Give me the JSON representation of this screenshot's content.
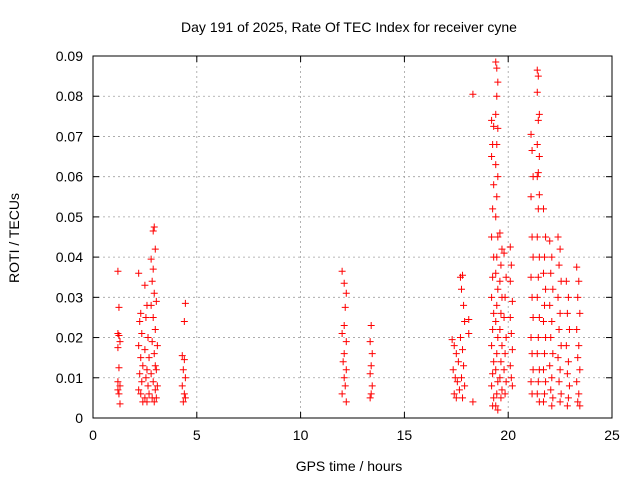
{
  "chart_data": {
    "type": "scatter",
    "title": "Day 191 of 2025, Rate Of TEC Index for receiver cyne",
    "xlabel": "GPS time / hours",
    "ylabel": "ROTI / TECUs",
    "xlim": [
      0,
      25
    ],
    "ylim": [
      0,
      0.09
    ],
    "xticks": [
      0,
      5,
      10,
      15,
      20,
      25
    ],
    "xtick_labels": [
      "0",
      "5",
      "10",
      "15",
      "20",
      "25"
    ],
    "yticks": [
      0,
      0.01,
      0.02,
      0.03,
      0.04,
      0.05,
      0.06,
      0.07,
      0.08,
      0.09
    ],
    "ytick_labels": [
      "0",
      "0.01",
      "0.02",
      "0.03",
      "0.04",
      "0.05",
      "0.06",
      "0.07",
      "0.08",
      "0.09"
    ],
    "grid": true,
    "marker": "+",
    "color": "#ff0000",
    "series": [
      {
        "points": [
          [
            1.2,
            0.0365
          ],
          [
            1.25,
            0.0275
          ],
          [
            1.2,
            0.021
          ],
          [
            1.25,
            0.0205
          ],
          [
            1.3,
            0.019
          ],
          [
            1.2,
            0.0175
          ],
          [
            1.25,
            0.0125
          ],
          [
            1.2,
            0.009
          ],
          [
            1.3,
            0.008
          ],
          [
            1.2,
            0.007
          ],
          [
            1.25,
            0.006
          ],
          [
            1.3,
            0.0035
          ],
          [
            2.2,
            0.036
          ],
          [
            2.3,
            0.026
          ],
          [
            2.25,
            0.024
          ],
          [
            2.35,
            0.021
          ],
          [
            2.2,
            0.018
          ],
          [
            2.3,
            0.015
          ],
          [
            2.4,
            0.013
          ],
          [
            2.25,
            0.011
          ],
          [
            2.35,
            0.009
          ],
          [
            2.2,
            0.007
          ],
          [
            2.3,
            0.006
          ],
          [
            2.4,
            0.004
          ],
          [
            2.5,
            0.033
          ],
          [
            2.6,
            0.028
          ],
          [
            2.55,
            0.025
          ],
          [
            2.65,
            0.02
          ],
          [
            2.5,
            0.017
          ],
          [
            2.7,
            0.015
          ],
          [
            2.6,
            0.012
          ],
          [
            2.55,
            0.01
          ],
          [
            2.65,
            0.008
          ],
          [
            2.7,
            0.006
          ],
          [
            2.6,
            0.004
          ],
          [
            2.5,
            0.005
          ],
          [
            2.8,
            0.0395
          ],
          [
            2.9,
            0.037
          ],
          [
            2.85,
            0.034
          ],
          [
            2.95,
            0.031
          ],
          [
            2.8,
            0.028
          ],
          [
            2.9,
            0.025
          ],
          [
            3.0,
            0.022
          ],
          [
            2.85,
            0.019
          ],
          [
            2.95,
            0.016
          ],
          [
            3.0,
            0.013
          ],
          [
            2.8,
            0.011
          ],
          [
            2.9,
            0.009
          ],
          [
            3.0,
            0.007
          ],
          [
            2.85,
            0.005
          ],
          [
            2.95,
            0.004
          ],
          [
            2.95,
            0.0475
          ],
          [
            2.9,
            0.0465
          ],
          [
            3.0,
            0.042
          ],
          [
            3.05,
            0.029
          ],
          [
            3.1,
            0.018
          ],
          [
            3.05,
            0.012
          ],
          [
            3.1,
            0.008
          ],
          [
            3.05,
            0.005
          ],
          [
            4.3,
            0.0155
          ],
          [
            4.4,
            0.0145
          ],
          [
            4.35,
            0.012
          ],
          [
            4.45,
            0.01
          ],
          [
            4.3,
            0.008
          ],
          [
            4.4,
            0.006
          ],
          [
            4.35,
            0.004
          ],
          [
            4.45,
            0.005
          ],
          [
            4.4,
            0.024
          ],
          [
            4.45,
            0.0285
          ],
          [
            12.0,
            0.0365
          ],
          [
            12.1,
            0.0335
          ],
          [
            12.2,
            0.031
          ],
          [
            12.15,
            0.0275
          ],
          [
            12.1,
            0.023
          ],
          [
            12.0,
            0.021
          ],
          [
            12.2,
            0.019
          ],
          [
            12.1,
            0.016
          ],
          [
            12.05,
            0.014
          ],
          [
            12.2,
            0.012
          ],
          [
            12.1,
            0.01
          ],
          [
            12.15,
            0.008
          ],
          [
            12.0,
            0.006
          ],
          [
            12.2,
            0.004
          ],
          [
            13.4,
            0.023
          ],
          [
            13.35,
            0.019
          ],
          [
            13.45,
            0.016
          ],
          [
            13.4,
            0.013
          ],
          [
            13.35,
            0.011
          ],
          [
            13.45,
            0.008
          ],
          [
            13.4,
            0.006
          ],
          [
            13.35,
            0.005
          ],
          [
            17.3,
            0.0195
          ],
          [
            17.4,
            0.018
          ],
          [
            17.5,
            0.016
          ],
          [
            17.6,
            0.014
          ],
          [
            17.35,
            0.012
          ],
          [
            17.45,
            0.01
          ],
          [
            17.55,
            0.009
          ],
          [
            17.65,
            0.007
          ],
          [
            17.4,
            0.006
          ],
          [
            17.5,
            0.005
          ],
          [
            17.7,
            0.035
          ],
          [
            17.8,
            0.0355
          ],
          [
            17.75,
            0.032
          ],
          [
            17.85,
            0.028
          ],
          [
            17.9,
            0.024
          ],
          [
            17.7,
            0.02
          ],
          [
            17.8,
            0.017
          ],
          [
            17.85,
            0.013
          ],
          [
            17.75,
            0.01
          ],
          [
            17.9,
            0.008
          ],
          [
            17.8,
            0.005
          ],
          [
            18.1,
            0.0245
          ],
          [
            18.1,
            0.021
          ],
          [
            18.3,
            0.0805
          ],
          [
            18.3,
            0.004
          ],
          [
            19.2,
            0.074
          ],
          [
            19.3,
            0.0725
          ],
          [
            19.25,
            0.068
          ],
          [
            19.2,
            0.065
          ],
          [
            19.3,
            0.058
          ],
          [
            19.25,
            0.052
          ],
          [
            19.2,
            0.045
          ],
          [
            19.3,
            0.04
          ],
          [
            19.25,
            0.035
          ],
          [
            19.2,
            0.03
          ],
          [
            19.3,
            0.026
          ],
          [
            19.25,
            0.022
          ],
          [
            19.2,
            0.018
          ],
          [
            19.3,
            0.014
          ],
          [
            19.25,
            0.011
          ],
          [
            19.2,
            0.008
          ],
          [
            19.3,
            0.005
          ],
          [
            19.25,
            0.003
          ],
          [
            19.4,
            0.0885
          ],
          [
            19.45,
            0.087
          ],
          [
            19.5,
            0.0835
          ],
          [
            19.45,
            0.08
          ],
          [
            19.4,
            0.0755
          ],
          [
            19.5,
            0.072
          ],
          [
            19.45,
            0.068
          ],
          [
            19.4,
            0.063
          ],
          [
            19.5,
            0.06
          ],
          [
            19.45,
            0.055
          ],
          [
            19.4,
            0.05
          ],
          [
            19.5,
            0.045
          ],
          [
            19.45,
            0.04
          ],
          [
            19.4,
            0.036
          ],
          [
            19.5,
            0.032
          ],
          [
            19.45,
            0.028
          ],
          [
            19.4,
            0.024
          ],
          [
            19.5,
            0.02
          ],
          [
            19.45,
            0.016
          ],
          [
            19.4,
            0.012
          ],
          [
            19.5,
            0.009
          ],
          [
            19.45,
            0.006
          ],
          [
            19.4,
            0.003
          ],
          [
            19.5,
            0.002
          ],
          [
            19.6,
            0.046
          ],
          [
            19.7,
            0.042
          ],
          [
            19.65,
            0.038
          ],
          [
            19.6,
            0.034
          ],
          [
            19.7,
            0.03
          ],
          [
            19.65,
            0.026
          ],
          [
            19.6,
            0.022
          ],
          [
            19.7,
            0.018
          ],
          [
            19.65,
            0.014
          ],
          [
            19.6,
            0.01
          ],
          [
            19.7,
            0.007
          ],
          [
            19.65,
            0.005
          ],
          [
            19.8,
            0.041
          ],
          [
            19.9,
            0.035
          ],
          [
            19.85,
            0.03
          ],
          [
            19.8,
            0.025
          ],
          [
            19.9,
            0.02
          ],
          [
            19.85,
            0.016
          ],
          [
            19.8,
            0.012
          ],
          [
            19.9,
            0.009
          ],
          [
            19.85,
            0.006
          ],
          [
            20.1,
            0.0425
          ],
          [
            20.15,
            0.038
          ],
          [
            20.1,
            0.034
          ],
          [
            20.2,
            0.029
          ],
          [
            20.1,
            0.025
          ],
          [
            20.15,
            0.021
          ],
          [
            20.2,
            0.017
          ],
          [
            20.1,
            0.013
          ],
          [
            20.15,
            0.01
          ],
          [
            20.2,
            0.008
          ],
          [
            21.1,
            0.0705
          ],
          [
            21.15,
            0.0665
          ],
          [
            21.2,
            0.06
          ],
          [
            21.1,
            0.055
          ],
          [
            21.15,
            0.045
          ],
          [
            21.2,
            0.04
          ],
          [
            21.1,
            0.035
          ],
          [
            21.15,
            0.03
          ],
          [
            21.2,
            0.025
          ],
          [
            21.1,
            0.02
          ],
          [
            21.15,
            0.016
          ],
          [
            21.2,
            0.012
          ],
          [
            21.1,
            0.009
          ],
          [
            21.15,
            0.006
          ],
          [
            21.4,
            0.0865
          ],
          [
            21.45,
            0.085
          ],
          [
            21.4,
            0.081
          ],
          [
            21.5,
            0.0755
          ],
          [
            21.45,
            0.074
          ],
          [
            21.4,
            0.068
          ],
          [
            21.5,
            0.065
          ],
          [
            21.45,
            0.061
          ],
          [
            21.4,
            0.06
          ],
          [
            21.5,
            0.0555
          ],
          [
            21.45,
            0.052
          ],
          [
            21.4,
            0.045
          ],
          [
            21.5,
            0.04
          ],
          [
            21.45,
            0.035
          ],
          [
            21.4,
            0.03
          ],
          [
            21.5,
            0.025
          ],
          [
            21.45,
            0.02
          ],
          [
            21.4,
            0.016
          ],
          [
            21.5,
            0.012
          ],
          [
            21.45,
            0.009
          ],
          [
            21.4,
            0.006
          ],
          [
            21.5,
            0.004
          ],
          [
            21.7,
            0.052
          ],
          [
            21.8,
            0.045
          ],
          [
            21.75,
            0.04
          ],
          [
            21.7,
            0.036
          ],
          [
            21.8,
            0.032
          ],
          [
            21.75,
            0.028
          ],
          [
            21.7,
            0.024
          ],
          [
            21.8,
            0.02
          ],
          [
            21.75,
            0.016
          ],
          [
            21.7,
            0.012
          ],
          [
            21.8,
            0.009
          ],
          [
            21.75,
            0.006
          ],
          [
            21.7,
            0.004
          ],
          [
            22.0,
            0.044
          ],
          [
            22.1,
            0.04
          ],
          [
            22.05,
            0.036
          ],
          [
            22.15,
            0.032
          ],
          [
            22.0,
            0.028
          ],
          [
            22.1,
            0.024
          ],
          [
            22.05,
            0.02
          ],
          [
            22.15,
            0.016
          ],
          [
            22.0,
            0.013
          ],
          [
            22.1,
            0.01
          ],
          [
            22.05,
            0.007
          ],
          [
            22.15,
            0.005
          ],
          [
            22.1,
            0.003
          ],
          [
            22.4,
            0.045
          ],
          [
            22.5,
            0.042
          ],
          [
            22.45,
            0.038
          ],
          [
            22.55,
            0.034
          ],
          [
            22.4,
            0.03
          ],
          [
            22.5,
            0.026
          ],
          [
            22.45,
            0.022
          ],
          [
            22.55,
            0.018
          ],
          [
            22.4,
            0.015
          ],
          [
            22.5,
            0.012
          ],
          [
            22.45,
            0.009
          ],
          [
            22.55,
            0.006
          ],
          [
            22.5,
            0.004
          ],
          [
            22.8,
            0.034
          ],
          [
            22.9,
            0.03
          ],
          [
            22.85,
            0.026
          ],
          [
            22.95,
            0.022
          ],
          [
            22.8,
            0.018
          ],
          [
            22.9,
            0.014
          ],
          [
            22.85,
            0.011
          ],
          [
            22.95,
            0.008
          ],
          [
            22.9,
            0.005
          ],
          [
            22.85,
            0.003
          ],
          [
            23.3,
            0.0375
          ],
          [
            23.4,
            0.034
          ],
          [
            23.35,
            0.03
          ],
          [
            23.45,
            0.026
          ],
          [
            23.3,
            0.022
          ],
          [
            23.4,
            0.018
          ],
          [
            23.35,
            0.015
          ],
          [
            23.45,
            0.012
          ],
          [
            23.3,
            0.009
          ],
          [
            23.4,
            0.006
          ],
          [
            23.35,
            0.004
          ],
          [
            23.45,
            0.003
          ]
        ]
      }
    ]
  }
}
